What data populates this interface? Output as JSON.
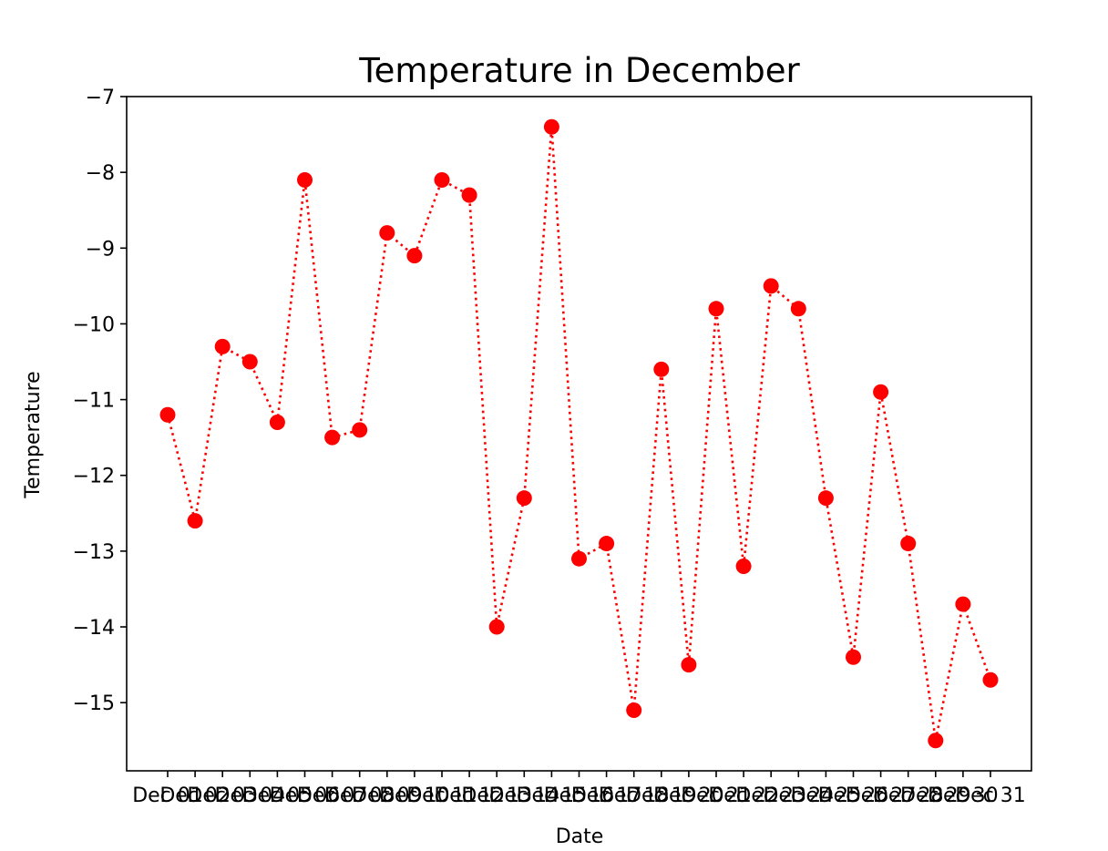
{
  "chart_data": {
    "type": "line",
    "title": "Temperature in December",
    "xlabel": "Date",
    "ylabel": "Temperature",
    "categories": [
      "Dec 01",
      "Dec 02",
      "Dec 03",
      "Dec 04",
      "Dec 05",
      "Dec 06",
      "Dec 07",
      "Dec 08",
      "Dec 09",
      "Dec 10",
      "Dec 11",
      "Dec 12",
      "Dec 13",
      "Dec 14",
      "Dec 15",
      "Dec 16",
      "Dec 17",
      "Dec 18",
      "Dec 19",
      "Dec 20",
      "Dec 21",
      "Dec 22",
      "Dec 23",
      "Dec 24",
      "Dec 25",
      "Dec 26",
      "Dec 27",
      "Dec 28",
      "Dec 29",
      "Dec 30",
      "Dec 31"
    ],
    "series": [
      {
        "values": [
          -11.2,
          -12.6,
          -10.3,
          -10.5,
          -11.3,
          -8.1,
          -11.5,
          -11.4,
          -8.8,
          -9.1,
          -8.1,
          -8.3,
          -14.0,
          -12.3,
          -7.4,
          -13.1,
          -12.9,
          -15.1,
          -10.6,
          -14.5,
          -9.8,
          -13.2,
          -9.5,
          -9.8,
          -12.3,
          -14.4,
          -10.9,
          -12.9,
          -15.5,
          -13.7,
          -14.7
        ],
        "color": "#ff0000",
        "line_style": "dotted",
        "marker": "circle"
      }
    ],
    "yticks": [
      -7,
      -8,
      -9,
      -10,
      -11,
      -12,
      -13,
      -14,
      -15
    ],
    "ylim": [
      -15.9,
      -7.0
    ],
    "grid": false,
    "legend": false
  }
}
